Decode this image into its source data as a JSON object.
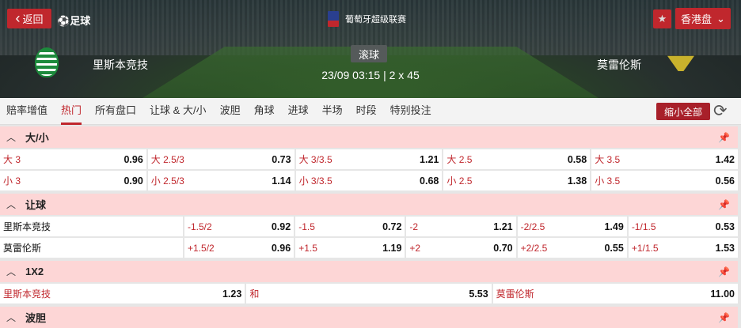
{
  "header": {
    "back_label": "返回",
    "sport_label": "足球",
    "league": "葡萄牙超级联赛",
    "odds_type": "香港盘",
    "status": "滚球",
    "match_time": "23/09 03:15 | 2 x 45",
    "home_team": "里斯本竞技",
    "away_team": "莫雷伦斯"
  },
  "tabs": [
    {
      "label": "赔率增值"
    },
    {
      "label": "热门",
      "active": true
    },
    {
      "label": "所有盘口"
    },
    {
      "label": "让球 & 大/小"
    },
    {
      "label": "波胆"
    },
    {
      "label": "角球"
    },
    {
      "label": "进球"
    },
    {
      "label": "半场"
    },
    {
      "label": "时段"
    },
    {
      "label": "特别投注"
    }
  ],
  "toolbar": {
    "collapse_label": "缩小全部"
  },
  "over_under": {
    "title": "大/小",
    "rows": [
      [
        {
          "label": "大 3",
          "odds": "0.96"
        },
        {
          "label": "大 2.5/3",
          "odds": "0.73"
        },
        {
          "label": "大 3/3.5",
          "odds": "1.21"
        },
        {
          "label": "大 2.5",
          "odds": "0.58"
        },
        {
          "label": "大 3.5",
          "odds": "1.42"
        }
      ],
      [
        {
          "label": "小 3",
          "odds": "0.90"
        },
        {
          "label": "小 2.5/3",
          "odds": "1.14"
        },
        {
          "label": "小 3/3.5",
          "odds": "0.68"
        },
        {
          "label": "小 2.5",
          "odds": "1.38"
        },
        {
          "label": "小 3.5",
          "odds": "0.56"
        }
      ]
    ]
  },
  "handicap": {
    "title": "让球",
    "rows": [
      {
        "team": "里斯本竞技",
        "cells": [
          {
            "label": "-1.5/2",
            "odds": "0.92"
          },
          {
            "label": "-1.5",
            "odds": "0.72"
          },
          {
            "label": "-2",
            "odds": "1.21"
          },
          {
            "label": "-2/2.5",
            "odds": "1.49"
          },
          {
            "label": "-1/1.5",
            "odds": "0.53"
          }
        ]
      },
      {
        "team": "莫雷伦斯",
        "cells": [
          {
            "label": "+1.5/2",
            "odds": "0.96"
          },
          {
            "label": "+1.5",
            "odds": "1.19"
          },
          {
            "label": "+2",
            "odds": "0.70"
          },
          {
            "label": "+2/2.5",
            "odds": "0.55"
          },
          {
            "label": "+1/1.5",
            "odds": "1.53"
          }
        ]
      }
    ]
  },
  "one_x_two": {
    "title": "1X2",
    "cells": [
      {
        "label": "里斯本竞技",
        "odds": "1.23"
      },
      {
        "label": "和",
        "odds": "5.53"
      },
      {
        "label": "莫雷伦斯",
        "odds": "11.00"
      }
    ]
  },
  "correct_score": {
    "title": "波胆"
  },
  "colors": {
    "accent": "#c0272d",
    "section_bg": "#fdd6d6"
  }
}
